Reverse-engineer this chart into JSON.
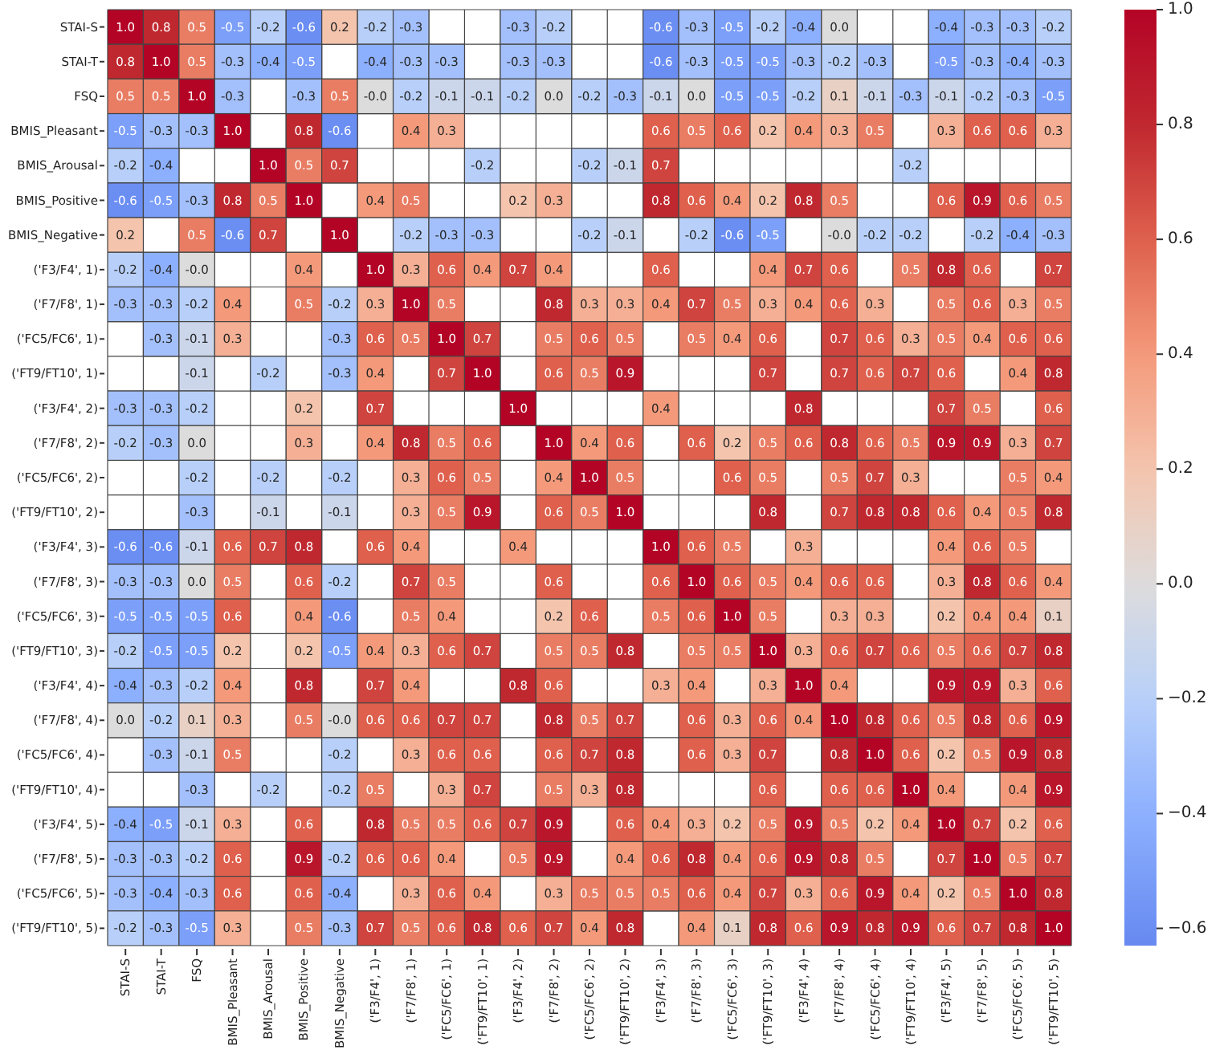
{
  "chart_data": {
    "type": "heatmap",
    "categories": [
      "STAI-S",
      "STAI-T",
      "FSQ",
      "BMIS_Pleasant",
      "BMIS_Arousal",
      "BMIS_Positive",
      "BMIS_Negative",
      "('F3/F4', 1)",
      "('F7/F8', 1)",
      "('FC5/FC6', 1)",
      "('FT9/FT10', 1)",
      "('F3/F4', 2)",
      "('F7/F8', 2)",
      "('FC5/FC6', 2)",
      "('FT9/FT10', 2)",
      "('F3/F4', 3)",
      "('F7/F8', 3)",
      "('FC5/FC6', 3)",
      "('FT9/FT10', 3)",
      "('F3/F4', 4)",
      "('F7/F8', 4)",
      "('FC5/FC6', 4)",
      "('FT9/FT10', 4)",
      "('F3/F4', 5)",
      "('F7/F8', 5)",
      "('FC5/FC6', 5)",
      "('FT9/FT10', 5)"
    ],
    "y_categories": [
      "STAI-S",
      "STAI-T",
      "FSQ",
      "BMIS_Pleasant",
      "BMIS_Arousal",
      "BMIS_Positive",
      "BMIS_Negative",
      "('F3/F4', 1)",
      "('F7/F8', 1)",
      "('FC5/FC6', 1)",
      "('FT9/FT10', 1)",
      "('F3/F4', 2)",
      "('F7/F8', 2)",
      "('FC5/FC6', 2)",
      "('FT9/FT10', 2)",
      "('F3/F4', 3)",
      "('F7/F8', 3)",
      "('FC5/FC6', 3)",
      "('FT9/FT10', 3)",
      "('F3/F4', 4)",
      "('F7/F8', 4)",
      "('FC5/FC6', 4)",
      "('FT9/FT10', 4)",
      "('F3/F4', 5)",
      "('F7/F8', 5)",
      "('FC5/FC6', 5)",
      "('FT9/FT10', 5)"
    ],
    "cells": [
      [
        1.0,
        0.8,
        0.5,
        -0.5,
        -0.2,
        -0.6,
        0.2,
        -0.2,
        -0.3,
        null,
        null,
        -0.3,
        -0.2,
        null,
        null,
        -0.6,
        -0.3,
        -0.5,
        -0.2,
        -0.4,
        0.0,
        null,
        null,
        -0.4,
        -0.3,
        -0.3,
        -0.2
      ],
      [
        0.8,
        1.0,
        0.5,
        -0.3,
        -0.4,
        -0.5,
        null,
        -0.4,
        -0.3,
        -0.3,
        null,
        -0.3,
        -0.3,
        null,
        null,
        -0.6,
        -0.3,
        -0.5,
        -0.5,
        -0.3,
        -0.2,
        -0.3,
        null,
        -0.5,
        -0.3,
        -0.4,
        -0.3
      ],
      [
        0.5,
        0.5,
        1.0,
        -0.3,
        null,
        -0.3,
        0.5,
        -0.0,
        -0.2,
        -0.1,
        -0.1,
        -0.2,
        0.0,
        -0.2,
        -0.3,
        -0.1,
        0.0,
        -0.5,
        -0.5,
        -0.2,
        0.1,
        -0.1,
        -0.3,
        -0.1,
        -0.2,
        -0.3,
        -0.5
      ],
      [
        -0.5,
        -0.3,
        -0.3,
        1.0,
        null,
        0.8,
        -0.6,
        null,
        0.4,
        0.3,
        null,
        null,
        null,
        null,
        null,
        0.6,
        0.5,
        0.6,
        0.2,
        0.4,
        0.3,
        0.5,
        null,
        0.3,
        0.6,
        0.6,
        0.3
      ],
      [
        -0.2,
        -0.4,
        null,
        null,
        1.0,
        0.5,
        0.7,
        null,
        null,
        null,
        -0.2,
        null,
        null,
        -0.2,
        -0.1,
        0.7,
        null,
        null,
        null,
        null,
        null,
        null,
        -0.2,
        null,
        null,
        null,
        null
      ],
      [
        -0.6,
        -0.5,
        -0.3,
        0.8,
        0.5,
        1.0,
        null,
        0.4,
        0.5,
        null,
        null,
        0.2,
        0.3,
        null,
        null,
        0.8,
        0.6,
        0.4,
        0.2,
        0.8,
        0.5,
        null,
        null,
        0.6,
        0.9,
        0.6,
        0.5
      ],
      [
        0.2,
        null,
        0.5,
        -0.6,
        0.7,
        null,
        1.0,
        null,
        -0.2,
        -0.3,
        -0.3,
        null,
        null,
        -0.2,
        -0.1,
        null,
        -0.2,
        -0.6,
        -0.5,
        null,
        -0.0,
        -0.2,
        -0.2,
        null,
        -0.2,
        -0.4,
        -0.3
      ],
      [
        -0.2,
        -0.4,
        -0.0,
        null,
        null,
        0.4,
        null,
        1.0,
        0.3,
        0.6,
        0.4,
        0.7,
        0.4,
        null,
        null,
        0.6,
        null,
        null,
        0.4,
        0.7,
        0.6,
        null,
        0.5,
        0.8,
        0.6,
        null,
        0.7
      ],
      [
        -0.3,
        -0.3,
        -0.2,
        0.4,
        null,
        0.5,
        -0.2,
        0.3,
        1.0,
        0.5,
        null,
        null,
        0.8,
        0.3,
        0.3,
        0.4,
        0.7,
        0.5,
        0.3,
        0.4,
        0.6,
        0.3,
        null,
        0.5,
        0.6,
        0.3,
        0.5
      ],
      [
        null,
        -0.3,
        -0.1,
        0.3,
        null,
        null,
        -0.3,
        0.6,
        0.5,
        1.0,
        0.7,
        null,
        0.5,
        0.6,
        0.5,
        null,
        0.5,
        0.4,
        0.6,
        null,
        0.7,
        0.6,
        0.3,
        0.5,
        0.4,
        0.6,
        0.6
      ],
      [
        null,
        null,
        -0.1,
        null,
        -0.2,
        null,
        -0.3,
        0.4,
        null,
        0.7,
        1.0,
        null,
        0.6,
        0.5,
        0.9,
        null,
        null,
        null,
        0.7,
        null,
        0.7,
        0.6,
        0.7,
        0.6,
        null,
        0.4,
        0.8
      ],
      [
        -0.3,
        -0.3,
        -0.2,
        null,
        null,
        0.2,
        null,
        0.7,
        null,
        null,
        null,
        1.0,
        null,
        null,
        null,
        0.4,
        null,
        null,
        null,
        0.8,
        null,
        null,
        null,
        0.7,
        0.5,
        null,
        0.6
      ],
      [
        -0.2,
        -0.3,
        0.0,
        null,
        null,
        0.3,
        null,
        0.4,
        0.8,
        0.5,
        0.6,
        null,
        1.0,
        0.4,
        0.6,
        null,
        0.6,
        0.2,
        0.5,
        0.6,
        0.8,
        0.6,
        0.5,
        0.9,
        0.9,
        0.3,
        0.7
      ],
      [
        null,
        null,
        -0.2,
        null,
        -0.2,
        null,
        -0.2,
        null,
        0.3,
        0.6,
        0.5,
        null,
        0.4,
        1.0,
        0.5,
        null,
        null,
        0.6,
        0.5,
        null,
        0.5,
        0.7,
        0.3,
        null,
        null,
        0.5,
        0.4
      ],
      [
        null,
        null,
        -0.3,
        null,
        -0.1,
        null,
        -0.1,
        null,
        0.3,
        0.5,
        0.9,
        null,
        0.6,
        0.5,
        1.0,
        null,
        null,
        null,
        0.8,
        null,
        0.7,
        0.8,
        0.8,
        0.6,
        0.4,
        0.5,
        0.8
      ],
      [
        -0.6,
        -0.6,
        -0.1,
        0.6,
        0.7,
        0.8,
        null,
        0.6,
        0.4,
        null,
        null,
        0.4,
        null,
        null,
        null,
        1.0,
        0.6,
        0.5,
        null,
        0.3,
        null,
        null,
        null,
        0.4,
        0.6,
        0.5,
        null
      ],
      [
        -0.3,
        -0.3,
        0.0,
        0.5,
        null,
        0.6,
        -0.2,
        null,
        0.7,
        0.5,
        null,
        null,
        0.6,
        null,
        null,
        0.6,
        1.0,
        0.6,
        0.5,
        0.4,
        0.6,
        0.6,
        null,
        0.3,
        0.8,
        0.6,
        0.4
      ],
      [
        -0.5,
        -0.5,
        -0.5,
        0.6,
        null,
        0.4,
        -0.6,
        null,
        0.5,
        0.4,
        null,
        null,
        0.2,
        0.6,
        null,
        0.5,
        0.6,
        1.0,
        0.5,
        null,
        0.3,
        0.3,
        null,
        0.2,
        0.4,
        0.4,
        0.1
      ],
      [
        -0.2,
        -0.5,
        -0.5,
        0.2,
        null,
        0.2,
        -0.5,
        0.4,
        0.3,
        0.6,
        0.7,
        null,
        0.5,
        0.5,
        0.8,
        null,
        0.5,
        0.5,
        1.0,
        0.3,
        0.6,
        0.7,
        0.6,
        0.5,
        0.6,
        0.7,
        0.8
      ],
      [
        -0.4,
        -0.3,
        -0.2,
        0.4,
        null,
        0.8,
        null,
        0.7,
        0.4,
        null,
        null,
        0.8,
        0.6,
        null,
        null,
        0.3,
        0.4,
        null,
        0.3,
        1.0,
        0.4,
        null,
        null,
        0.9,
        0.9,
        0.3,
        0.6
      ],
      [
        0.0,
        -0.2,
        0.1,
        0.3,
        null,
        0.5,
        -0.0,
        0.6,
        0.6,
        0.7,
        0.7,
        null,
        0.8,
        0.5,
        0.7,
        null,
        0.6,
        0.3,
        0.6,
        0.4,
        1.0,
        0.8,
        0.6,
        0.5,
        0.8,
        0.6,
        0.9
      ],
      [
        null,
        -0.3,
        -0.1,
        0.5,
        null,
        null,
        -0.2,
        null,
        0.3,
        0.6,
        0.6,
        null,
        0.6,
        0.7,
        0.8,
        null,
        0.6,
        0.3,
        0.7,
        null,
        0.8,
        1.0,
        0.6,
        0.2,
        0.5,
        0.9,
        0.8
      ],
      [
        null,
        null,
        -0.3,
        null,
        -0.2,
        null,
        -0.2,
        0.5,
        null,
        0.3,
        0.7,
        null,
        0.5,
        0.3,
        0.8,
        null,
        null,
        null,
        0.6,
        null,
        0.6,
        0.6,
        1.0,
        0.4,
        null,
        0.4,
        0.9
      ],
      [
        -0.4,
        -0.5,
        -0.1,
        0.3,
        null,
        0.6,
        null,
        0.8,
        0.5,
        0.5,
        0.6,
        0.7,
        0.9,
        null,
        0.6,
        0.4,
        0.3,
        0.2,
        0.5,
        0.9,
        0.5,
        0.2,
        0.4,
        1.0,
        0.7,
        0.2,
        0.6
      ],
      [
        -0.3,
        -0.3,
        -0.2,
        0.6,
        null,
        0.9,
        -0.2,
        0.6,
        0.6,
        0.4,
        null,
        0.5,
        0.9,
        null,
        0.4,
        0.6,
        0.8,
        0.4,
        0.6,
        0.9,
        0.8,
        0.5,
        null,
        0.7,
        1.0,
        0.5,
        0.7
      ],
      [
        -0.3,
        -0.4,
        -0.3,
        0.6,
        null,
        0.6,
        -0.4,
        null,
        0.3,
        0.6,
        0.4,
        null,
        0.3,
        0.5,
        0.5,
        0.5,
        0.6,
        0.4,
        0.7,
        0.3,
        0.6,
        0.9,
        0.4,
        0.2,
        0.5,
        1.0,
        0.8
      ],
      [
        -0.2,
        -0.3,
        -0.5,
        0.3,
        null,
        0.5,
        -0.3,
        0.7,
        0.5,
        0.6,
        0.8,
        0.6,
        0.7,
        0.4,
        0.8,
        null,
        0.4,
        0.1,
        0.8,
        0.6,
        0.9,
        0.8,
        0.9,
        0.6,
        0.7,
        0.8,
        1.0
      ]
    ],
    "cell_labels": [
      [
        "1.0",
        "0.8",
        "0.5",
        "-0.5",
        "-0.2",
        "-0.6",
        "0.2",
        "-0.2",
        "-0.3",
        null,
        null,
        "-0.3",
        "-0.2",
        null,
        null,
        "-0.6",
        "-0.3",
        "-0.5",
        "-0.2",
        "-0.4",
        "0.0",
        null,
        null,
        "-0.4",
        "-0.3",
        "-0.3",
        "-0.2"
      ],
      [
        "0.8",
        "1.0",
        "0.5",
        "-0.3",
        "-0.4",
        "-0.5",
        null,
        "-0.4",
        "-0.3",
        "-0.3",
        null,
        "-0.3",
        "-0.3",
        null,
        null,
        "-0.6",
        "-0.3",
        "-0.5",
        "-0.5",
        "-0.3",
        "-0.2",
        "-0.3",
        null,
        "-0.5",
        "-0.3",
        "-0.4",
        "-0.3"
      ],
      [
        "0.5",
        "0.5",
        "1.0",
        "-0.3",
        null,
        "-0.3",
        "0.5",
        "-0.0",
        "-0.2",
        "-0.1",
        "-0.1",
        "-0.2",
        "0.0",
        "-0.2",
        "-0.3",
        "-0.1",
        "0.0",
        "-0.5",
        "-0.5",
        "-0.2",
        "0.1",
        "-0.1",
        "-0.3",
        "-0.1",
        "-0.2",
        "-0.3",
        "-0.5"
      ],
      [
        "-0.5",
        "-0.3",
        "-0.3",
        "1.0",
        null,
        "0.8",
        "-0.6",
        null,
        "0.4",
        "0.3",
        null,
        null,
        null,
        null,
        null,
        "0.6",
        "0.5",
        "0.6",
        "0.2",
        "0.4",
        "0.3",
        "0.5",
        null,
        "0.3",
        "0.6",
        "0.6",
        "0.3"
      ],
      [
        "-0.2",
        "-0.4",
        null,
        null,
        "1.0",
        "0.5",
        "0.7",
        null,
        null,
        null,
        "-0.2",
        null,
        null,
        "-0.2",
        "-0.1",
        "0.7",
        null,
        null,
        null,
        null,
        null,
        null,
        "-0.2",
        null,
        null,
        null,
        null
      ],
      [
        "-0.6",
        "-0.5",
        "-0.3",
        "0.8",
        "0.5",
        "1.0",
        null,
        "0.4",
        "0.5",
        null,
        null,
        "0.2",
        "0.3",
        null,
        null,
        "0.8",
        "0.6",
        "0.4",
        "0.2",
        "0.8",
        "0.5",
        null,
        null,
        "0.6",
        "0.9",
        "0.6",
        "0.5"
      ],
      [
        "0.2",
        null,
        "0.5",
        "-0.6",
        "0.7",
        null,
        "1.0",
        null,
        "-0.2",
        "-0.3",
        "-0.3",
        null,
        null,
        "-0.2",
        "-0.1",
        null,
        "-0.2",
        "-0.6",
        "-0.5",
        null,
        "-0.0",
        "-0.2",
        "-0.2",
        null,
        "-0.2",
        "-0.4",
        "-0.3"
      ],
      [
        "-0.2",
        "-0.4",
        "-0.0",
        null,
        null,
        "0.4",
        null,
        "1.0",
        "0.3",
        "0.6",
        "0.4",
        "0.7",
        "0.4",
        null,
        null,
        "0.6",
        null,
        null,
        "0.4",
        "0.7",
        "0.6",
        null,
        "0.5",
        "0.8",
        "0.6",
        null,
        "0.7"
      ],
      [
        "-0.3",
        "-0.3",
        "-0.2",
        "0.4",
        null,
        "0.5",
        "-0.2",
        "0.3",
        "1.0",
        "0.5",
        null,
        null,
        "0.8",
        "0.3",
        "0.3",
        "0.4",
        "0.7",
        "0.5",
        "0.3",
        "0.4",
        "0.6",
        "0.3",
        null,
        "0.5",
        "0.6",
        "0.3",
        "0.5"
      ],
      [
        null,
        "-0.3",
        "-0.1",
        "0.3",
        null,
        null,
        "-0.3",
        "0.6",
        "0.5",
        "1.0",
        "0.7",
        null,
        "0.5",
        "0.6",
        "0.5",
        null,
        "0.5",
        "0.4",
        "0.6",
        null,
        "0.7",
        "0.6",
        "0.3",
        "0.5",
        "0.4",
        "0.6",
        "0.6"
      ],
      [
        null,
        null,
        "-0.1",
        null,
        "-0.2",
        null,
        "-0.3",
        "0.4",
        null,
        "0.7",
        "1.0",
        null,
        "0.6",
        "0.5",
        "0.9",
        null,
        null,
        null,
        "0.7",
        null,
        "0.7",
        "0.6",
        "0.7",
        "0.6",
        null,
        "0.4",
        "0.8"
      ],
      [
        "-0.3",
        "-0.3",
        "-0.2",
        null,
        null,
        "0.2",
        null,
        "0.7",
        null,
        null,
        null,
        "1.0",
        null,
        null,
        null,
        "0.4",
        null,
        null,
        null,
        "0.8",
        null,
        null,
        null,
        "0.7",
        "0.5",
        null,
        "0.6"
      ],
      [
        "-0.2",
        "-0.3",
        "0.0",
        null,
        null,
        "0.3",
        null,
        "0.4",
        "0.8",
        "0.5",
        "0.6",
        null,
        "1.0",
        "0.4",
        "0.6",
        null,
        "0.6",
        "0.2",
        "0.5",
        "0.6",
        "0.8",
        "0.6",
        "0.5",
        "0.9",
        "0.9",
        "0.3",
        "0.7"
      ],
      [
        null,
        null,
        "-0.2",
        null,
        "-0.2",
        null,
        "-0.2",
        null,
        "0.3",
        "0.6",
        "0.5",
        null,
        "0.4",
        "1.0",
        "0.5",
        null,
        null,
        "0.6",
        "0.5",
        null,
        "0.5",
        "0.7",
        "0.3",
        null,
        null,
        "0.5",
        "0.4"
      ],
      [
        null,
        null,
        "-0.3",
        null,
        "-0.1",
        null,
        "-0.1",
        null,
        "0.3",
        "0.5",
        "0.9",
        null,
        "0.6",
        "0.5",
        "1.0",
        null,
        null,
        null,
        "0.8",
        null,
        "0.7",
        "0.8",
        "0.8",
        "0.6",
        "0.4",
        "0.5",
        "0.8"
      ],
      [
        "-0.6",
        "-0.6",
        "-0.1",
        "0.6",
        "0.7",
        "0.8",
        null,
        "0.6",
        "0.4",
        null,
        null,
        "0.4",
        null,
        null,
        null,
        "1.0",
        "0.6",
        "0.5",
        null,
        "0.3",
        null,
        null,
        null,
        "0.4",
        "0.6",
        "0.5",
        null
      ],
      [
        "-0.3",
        "-0.3",
        "0.0",
        "0.5",
        null,
        "0.6",
        "-0.2",
        null,
        "0.7",
        "0.5",
        null,
        null,
        "0.6",
        null,
        null,
        "0.6",
        "1.0",
        "0.6",
        "0.5",
        "0.4",
        "0.6",
        "0.6",
        null,
        "0.3",
        "0.8",
        "0.6",
        "0.4"
      ],
      [
        "-0.5",
        "-0.5",
        "-0.5",
        "0.6",
        null,
        "0.4",
        "-0.6",
        null,
        "0.5",
        "0.4",
        null,
        null,
        "0.2",
        "0.6",
        null,
        "0.5",
        "0.6",
        "1.0",
        "0.5",
        null,
        "0.3",
        "0.3",
        null,
        "0.2",
        "0.4",
        "0.4",
        "0.1"
      ],
      [
        "-0.2",
        "-0.5",
        "-0.5",
        "0.2",
        null,
        "0.2",
        "-0.5",
        "0.4",
        "0.3",
        "0.6",
        "0.7",
        null,
        "0.5",
        "0.5",
        "0.8",
        null,
        "0.5",
        "0.5",
        "1.0",
        "0.3",
        "0.6",
        "0.7",
        "0.6",
        "0.5",
        "0.6",
        "0.7",
        "0.8"
      ],
      [
        "-0.4",
        "-0.3",
        "-0.2",
        "0.4",
        null,
        "0.8",
        null,
        "0.7",
        "0.4",
        null,
        null,
        "0.8",
        "0.6",
        null,
        null,
        "0.3",
        "0.4",
        null,
        "0.3",
        "1.0",
        "0.4",
        null,
        null,
        "0.9",
        "0.9",
        "0.3",
        "0.6"
      ],
      [
        "0.0",
        "-0.2",
        "0.1",
        "0.3",
        null,
        "0.5",
        "-0.0",
        "0.6",
        "0.6",
        "0.7",
        "0.7",
        null,
        "0.8",
        "0.5",
        "0.7",
        null,
        "0.6",
        "0.3",
        "0.6",
        "0.4",
        "1.0",
        "0.8",
        "0.6",
        "0.5",
        "0.8",
        "0.6",
        "0.9"
      ],
      [
        null,
        "-0.3",
        "-0.1",
        "0.5",
        null,
        null,
        "-0.2",
        null,
        "0.3",
        "0.6",
        "0.6",
        null,
        "0.6",
        "0.7",
        "0.8",
        null,
        "0.6",
        "0.3",
        "0.7",
        null,
        "0.8",
        "1.0",
        "0.6",
        "0.2",
        "0.5",
        "0.9",
        "0.8"
      ],
      [
        null,
        null,
        "-0.3",
        null,
        "-0.2",
        null,
        "-0.2",
        "0.5",
        null,
        "0.3",
        "0.7",
        null,
        "0.5",
        "0.3",
        "0.8",
        null,
        null,
        null,
        "0.6",
        null,
        "0.6",
        "0.6",
        "1.0",
        "0.4",
        null,
        "0.4",
        "0.9"
      ],
      [
        "-0.4",
        "-0.5",
        "-0.1",
        "0.3",
        null,
        "0.6",
        null,
        "0.8",
        "0.5",
        "0.5",
        "0.6",
        "0.7",
        "0.9",
        null,
        "0.6",
        "0.4",
        "0.3",
        "0.2",
        "0.5",
        "0.9",
        "0.5",
        "0.2",
        "0.4",
        "1.0",
        "0.7",
        "0.2",
        "0.6"
      ],
      [
        "-0.3",
        "-0.3",
        "-0.2",
        "0.6",
        null,
        "0.9",
        "-0.2",
        "0.6",
        "0.6",
        "0.4",
        null,
        "0.5",
        "0.9",
        null,
        "0.4",
        "0.6",
        "0.8",
        "0.4",
        "0.6",
        "0.9",
        "0.8",
        "0.5",
        null,
        "0.7",
        "1.0",
        "0.5",
        "0.7"
      ],
      [
        "-0.3",
        "-0.4",
        "-0.3",
        "0.6",
        null,
        "0.6",
        "-0.4",
        null,
        "0.3",
        "0.6",
        "0.4",
        null,
        "0.3",
        "0.5",
        "0.5",
        "0.5",
        "0.6",
        "0.4",
        "0.7",
        "0.3",
        "0.6",
        "0.9",
        "0.4",
        "0.2",
        "0.5",
        "1.0",
        "0.8"
      ],
      [
        "-0.2",
        "-0.3",
        "-0.5",
        "0.3",
        null,
        "0.5",
        "-0.3",
        "0.7",
        "0.5",
        "0.6",
        "0.8",
        "0.6",
        "0.7",
        "0.4",
        "0.8",
        null,
        "0.4",
        "0.1",
        "0.8",
        "0.6",
        "0.9",
        "0.8",
        "0.9",
        "0.6",
        "0.7",
        "0.8",
        "1.0"
      ]
    ],
    "clim": [
      -0.63,
      1.0
    ],
    "cticks": [
      {
        "value": -0.6,
        "label": "−0.6"
      },
      {
        "value": -0.4,
        "label": "−0.4"
      },
      {
        "value": -0.2,
        "label": "−0.2"
      },
      {
        "value": 0.0,
        "label": "0.0"
      },
      {
        "value": 0.2,
        "label": "0.2"
      },
      {
        "value": 0.4,
        "label": "0.4"
      },
      {
        "value": 0.6,
        "label": "0.6"
      },
      {
        "value": 0.8,
        "label": "0.8"
      },
      {
        "value": 1.0,
        "label": "1.0"
      }
    ],
    "data_labels": true,
    "grid": true
  }
}
